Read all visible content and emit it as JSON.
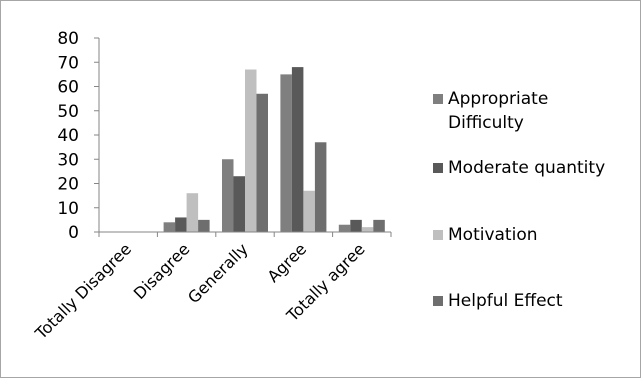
{
  "chart_data": {
    "type": "bar",
    "categories": [
      "Totally Disagree",
      "Disagree",
      "Generally",
      "Agree",
      "Totally agree"
    ],
    "series": [
      {
        "name": "Appropriate Difficulty",
        "legend_lines": [
          "Appropriate",
          "Difficulty"
        ],
        "color": "#7f7f7f",
        "values": [
          0,
          4,
          30,
          65,
          3
        ]
      },
      {
        "name": "Moderate quantity",
        "legend_lines": [
          "Moderate quantity"
        ],
        "color": "#595959",
        "values": [
          0,
          6,
          23,
          68,
          5
        ]
      },
      {
        "name": "Motivation",
        "legend_lines": [
          "Motivation"
        ],
        "color": "#bfbfbf",
        "values": [
          0,
          16,
          67,
          17,
          2
        ]
      },
      {
        "name": "Helpful Effect",
        "legend_lines": [
          "Helpful Effect"
        ],
        "color": "#6e6e6e",
        "values": [
          0,
          5,
          57,
          37,
          5
        ]
      }
    ],
    "yticks": [
      0,
      10,
      20,
      30,
      40,
      50,
      60,
      70,
      80
    ],
    "ylim": [
      0,
      80
    ],
    "grid": false,
    "legend_position": "right",
    "title": "",
    "xlabel": "",
    "ylabel": ""
  }
}
